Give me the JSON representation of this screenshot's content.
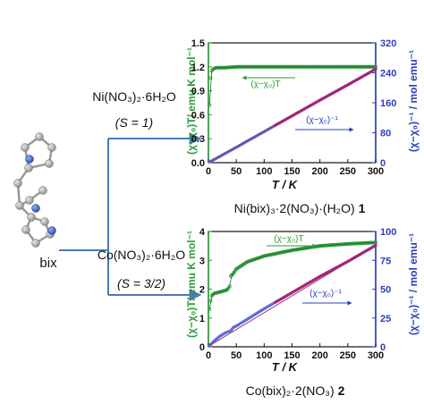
{
  "molecule": {
    "label": "bix"
  },
  "reactions": [
    {
      "reagent": "Ni(NO₃)₂·6H₂O",
      "spin": "(S = 1)"
    },
    {
      "reagent": "Co(NO₃)₂·6H₂O",
      "spin": "(S = 3/2)"
    }
  ],
  "products": [
    {
      "formula": "Ni(bix)₃·2(NO₃)·(H₂O)",
      "number": "1"
    },
    {
      "formula": "Co(bix)₂·2(NO₃)",
      "number": "2"
    }
  ],
  "colors": {
    "arrow": "#4a7ab7",
    "chi_t": "#2e9a3a",
    "chi_inv_low": "#5a6ed8",
    "chi_inv_high": "#a02878",
    "right_axis": "#2a3fbf"
  },
  "chart_data": [
    {
      "type": "line",
      "xlabel": "T / K",
      "ylabel": "(χ−χ₀)T/ emu K mol⁻¹",
      "y2label": "(χ−χ₀)⁻¹ / mol emu⁻¹",
      "xlim": [
        0,
        300
      ],
      "ylim": [
        0,
        1.5
      ],
      "y2lim": [
        0,
        320
      ],
      "xticks": [
        "0",
        "50",
        "100",
        "150",
        "200",
        "250",
        "300"
      ],
      "yticks": [
        "0.0",
        "0.3",
        "0.6",
        "0.9",
        "1.2",
        "1.5"
      ],
      "y2ticks": [
        "0",
        "80",
        "160",
        "240",
        "320"
      ],
      "annotations": [
        "(χ−χ₀)T",
        "(χ−χ₀)⁻¹"
      ],
      "series": [
        {
          "name": "(χ−χ₀)T",
          "axis": "left",
          "x": [
            2,
            3,
            4,
            5,
            6,
            8,
            10,
            15,
            20,
            30,
            50,
            100,
            150,
            200,
            250,
            300
          ],
          "values": [
            0.72,
            0.93,
            1.06,
            1.12,
            1.15,
            1.17,
            1.18,
            1.19,
            1.19,
            1.19,
            1.2,
            1.2,
            1.2,
            1.2,
            1.2,
            1.2
          ]
        },
        {
          "name": "(χ−χ₀)⁻¹",
          "axis": "right",
          "x": [
            2,
            10,
            50,
            100,
            150,
            200,
            250,
            300
          ],
          "values": [
            2,
            8,
            41,
            83,
            125,
            167,
            208,
            250
          ]
        }
      ]
    },
    {
      "type": "line",
      "xlabel": "T / K",
      "ylabel": "(χ−χ₀)T/ emu K mol⁻¹",
      "y2label": "(χ−χ₀)⁻¹ / mol emu⁻¹",
      "xlim": [
        0,
        300
      ],
      "ylim": [
        0,
        4
      ],
      "y2lim": [
        0,
        100
      ],
      "xticks": [
        "0",
        "50",
        "100",
        "150",
        "200",
        "250",
        "300"
      ],
      "yticks": [
        "0",
        "1",
        "2",
        "3",
        "4"
      ],
      "y2ticks": [
        "0",
        "25",
        "50",
        "75",
        "100"
      ],
      "annotations": [
        "(χ−χ₀)T",
        "(χ−χ₀)⁻¹"
      ],
      "series": [
        {
          "name": "(χ−χ₀)T",
          "axis": "left",
          "x": [
            2,
            5,
            10,
            20,
            30,
            35,
            38,
            40,
            45,
            50,
            70,
            100,
            150,
            200,
            250,
            300
          ],
          "values": [
            1.3,
            1.75,
            1.85,
            1.9,
            1.95,
            2.0,
            2.1,
            2.45,
            2.55,
            2.7,
            2.95,
            3.15,
            3.35,
            3.5,
            3.57,
            3.62
          ]
        },
        {
          "name": "(χ−χ₀)⁻¹",
          "axis": "right",
          "x": [
            2,
            10,
            20,
            30,
            40,
            45,
            50,
            100,
            150,
            200,
            250,
            300
          ],
          "values": [
            1,
            5,
            9,
            12,
            14,
            17,
            18,
            33,
            47,
            61,
            74,
            88
          ]
        }
      ]
    }
  ]
}
